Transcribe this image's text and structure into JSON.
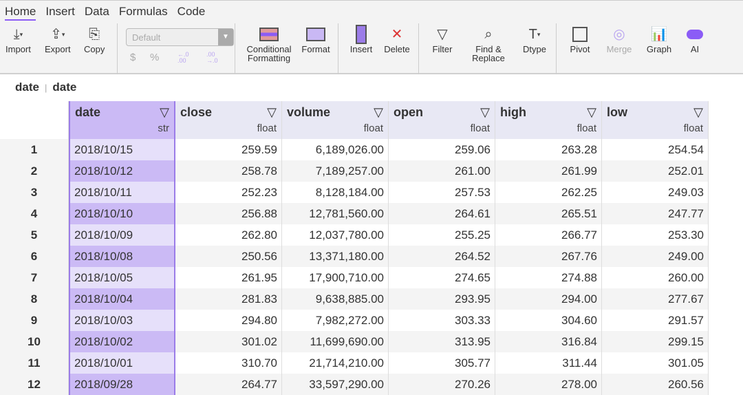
{
  "menu": [
    "Home",
    "Insert",
    "Data",
    "Formulas",
    "Code"
  ],
  "toolbar": {
    "import": "Import",
    "export": "Export",
    "copy": "Copy",
    "format_select": "Default",
    "currency": "$",
    "percent": "%",
    "dec_dec": "←.0 .00",
    "inc_dec": ".00 →.0",
    "conditional": "Conditional Formatting",
    "format": "Format",
    "insert": "Insert",
    "delete": "Delete",
    "filter": "Filter",
    "find": "Find & Replace",
    "dtype": "Dtype",
    "pivot": "Pivot",
    "merge": "Merge",
    "graph": "Graph",
    "ai": "AI"
  },
  "breadcrumb": [
    "date",
    "date"
  ],
  "columns": [
    {
      "name": "date",
      "type": "str"
    },
    {
      "name": "close",
      "type": "float"
    },
    {
      "name": "volume",
      "type": "float"
    },
    {
      "name": "open",
      "type": "float"
    },
    {
      "name": "high",
      "type": "float"
    },
    {
      "name": "low",
      "type": "float"
    }
  ],
  "rows": [
    [
      "1",
      "2018/10/15",
      "259.59",
      "6,189,026.00",
      "259.06",
      "263.28",
      "254.54"
    ],
    [
      "2",
      "2018/10/12",
      "258.78",
      "7,189,257.00",
      "261.00",
      "261.99",
      "252.01"
    ],
    [
      "3",
      "2018/10/11",
      "252.23",
      "8,128,184.00",
      "257.53",
      "262.25",
      "249.03"
    ],
    [
      "4",
      "2018/10/10",
      "256.88",
      "12,781,560.00",
      "264.61",
      "265.51",
      "247.77"
    ],
    [
      "5",
      "2018/10/09",
      "262.80",
      "12,037,780.00",
      "255.25",
      "266.77",
      "253.30"
    ],
    [
      "6",
      "2018/10/08",
      "250.56",
      "13,371,180.00",
      "264.52",
      "267.76",
      "249.00"
    ],
    [
      "7",
      "2018/10/05",
      "261.95",
      "17,900,710.00",
      "274.65",
      "274.88",
      "260.00"
    ],
    [
      "8",
      "2018/10/04",
      "281.83",
      "9,638,885.00",
      "293.95",
      "294.00",
      "277.67"
    ],
    [
      "9",
      "2018/10/03",
      "294.80",
      "7,982,272.00",
      "303.33",
      "304.60",
      "291.57"
    ],
    [
      "10",
      "2018/10/02",
      "301.02",
      "11,699,690.00",
      "313.95",
      "316.84",
      "299.15"
    ],
    [
      "11",
      "2018/10/01",
      "310.70",
      "21,714,210.00",
      "305.77",
      "311.44",
      "301.05"
    ],
    [
      "12",
      "2018/09/28",
      "264.77",
      "33,597,290.00",
      "270.26",
      "278.00",
      "260.56"
    ]
  ]
}
